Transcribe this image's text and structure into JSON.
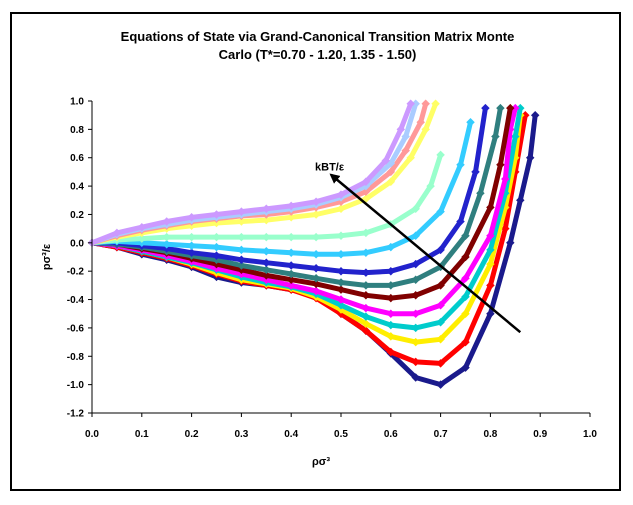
{
  "chart_data": {
    "type": "scatter",
    "title_lines": [
      "Equations of State via Grand-Canonical Transition Matrix Monte",
      "Carlo (T*=0.70 - 1.20, 1.35 - 1.50)"
    ],
    "xlabel": "ρσ³",
    "ylabel": "pσ³/ε",
    "xlim": [
      0.0,
      1.0
    ],
    "ylim": [
      -1.2,
      1.0
    ],
    "xticks": [
      "0.0",
      "0.1",
      "0.2",
      "0.3",
      "0.4",
      "0.5",
      "0.6",
      "0.7",
      "0.8",
      "0.9",
      "1.0"
    ],
    "yticks": [
      "-1.2",
      "-1.0",
      "-0.8",
      "-0.6",
      "-0.4",
      "-0.2",
      "0.0",
      "0.2",
      "0.4",
      "0.6",
      "0.8",
      "1.0"
    ],
    "grid": false,
    "annotation": {
      "text": "kBT/ε",
      "arrow_from": [
        0.86,
        -0.63
      ],
      "arrow_to": [
        0.48,
        0.48
      ]
    },
    "series": [
      {
        "color": "#1a1a8c",
        "points": [
          [
            0,
            0
          ],
          [
            0.05,
            -0.03
          ],
          [
            0.1,
            -0.08
          ],
          [
            0.15,
            -0.12
          ],
          [
            0.2,
            -0.17
          ],
          [
            0.25,
            -0.24
          ],
          [
            0.3,
            -0.28
          ],
          [
            0.35,
            -0.3
          ],
          [
            0.4,
            -0.33
          ],
          [
            0.45,
            -0.38
          ],
          [
            0.5,
            -0.5
          ],
          [
            0.55,
            -0.62
          ],
          [
            0.6,
            -0.78
          ],
          [
            0.65,
            -0.95
          ],
          [
            0.7,
            -1.0
          ],
          [
            0.75,
            -0.88
          ],
          [
            0.8,
            -0.5
          ],
          [
            0.84,
            0.0
          ],
          [
            0.86,
            0.3
          ],
          [
            0.88,
            0.6
          ],
          [
            0.89,
            0.9
          ]
        ]
      },
      {
        "color": "#ff0000",
        "points": [
          [
            0,
            0
          ],
          [
            0.05,
            -0.03
          ],
          [
            0.1,
            -0.07
          ],
          [
            0.15,
            -0.11
          ],
          [
            0.2,
            -0.16
          ],
          [
            0.25,
            -0.22
          ],
          [
            0.3,
            -0.27
          ],
          [
            0.35,
            -0.3
          ],
          [
            0.4,
            -0.33
          ],
          [
            0.45,
            -0.39
          ],
          [
            0.5,
            -0.5
          ],
          [
            0.55,
            -0.62
          ],
          [
            0.6,
            -0.77
          ],
          [
            0.65,
            -0.84
          ],
          [
            0.7,
            -0.85
          ],
          [
            0.75,
            -0.7
          ],
          [
            0.8,
            -0.3
          ],
          [
            0.83,
            0.1
          ],
          [
            0.85,
            0.5
          ],
          [
            0.87,
            0.9
          ]
        ]
      },
      {
        "color": "#ffee00",
        "points": [
          [
            0,
            0
          ],
          [
            0.05,
            -0.02
          ],
          [
            0.1,
            -0.06
          ],
          [
            0.15,
            -0.1
          ],
          [
            0.2,
            -0.15
          ],
          [
            0.25,
            -0.21
          ],
          [
            0.3,
            -0.26
          ],
          [
            0.35,
            -0.29
          ],
          [
            0.4,
            -0.32
          ],
          [
            0.45,
            -0.38
          ],
          [
            0.5,
            -0.47
          ],
          [
            0.55,
            -0.57
          ],
          [
            0.6,
            -0.66
          ],
          [
            0.65,
            -0.7
          ],
          [
            0.7,
            -0.68
          ],
          [
            0.75,
            -0.5
          ],
          [
            0.8,
            -0.15
          ],
          [
            0.83,
            0.25
          ],
          [
            0.85,
            0.6
          ],
          [
            0.86,
            0.9
          ]
        ]
      },
      {
        "color": "#00cccc",
        "points": [
          [
            0,
            0
          ],
          [
            0.05,
            -0.02
          ],
          [
            0.1,
            -0.06
          ],
          [
            0.15,
            -0.1
          ],
          [
            0.2,
            -0.14
          ],
          [
            0.25,
            -0.19
          ],
          [
            0.3,
            -0.24
          ],
          [
            0.35,
            -0.28
          ],
          [
            0.4,
            -0.31
          ],
          [
            0.45,
            -0.36
          ],
          [
            0.5,
            -0.44
          ],
          [
            0.55,
            -0.52
          ],
          [
            0.6,
            -0.58
          ],
          [
            0.65,
            -0.6
          ],
          [
            0.7,
            -0.56
          ],
          [
            0.75,
            -0.38
          ],
          [
            0.8,
            -0.05
          ],
          [
            0.83,
            0.35
          ],
          [
            0.85,
            0.75
          ],
          [
            0.86,
            0.95
          ]
        ]
      },
      {
        "color": "#ff00ff",
        "points": [
          [
            0,
            0
          ],
          [
            0.05,
            -0.02
          ],
          [
            0.1,
            -0.05
          ],
          [
            0.15,
            -0.09
          ],
          [
            0.2,
            -0.13
          ],
          [
            0.25,
            -0.18
          ],
          [
            0.3,
            -0.22
          ],
          [
            0.35,
            -0.26
          ],
          [
            0.4,
            -0.3
          ],
          [
            0.45,
            -0.34
          ],
          [
            0.5,
            -0.4
          ],
          [
            0.55,
            -0.46
          ],
          [
            0.6,
            -0.5
          ],
          [
            0.65,
            -0.5
          ],
          [
            0.7,
            -0.44
          ],
          [
            0.75,
            -0.25
          ],
          [
            0.8,
            0.05
          ],
          [
            0.83,
            0.45
          ],
          [
            0.84,
            0.8
          ],
          [
            0.85,
            0.95
          ]
        ]
      },
      {
        "color": "#800000",
        "points": [
          [
            0,
            0
          ],
          [
            0.05,
            -0.01
          ],
          [
            0.1,
            -0.04
          ],
          [
            0.15,
            -0.07
          ],
          [
            0.2,
            -0.11
          ],
          [
            0.25,
            -0.15
          ],
          [
            0.3,
            -0.19
          ],
          [
            0.35,
            -0.23
          ],
          [
            0.4,
            -0.26
          ],
          [
            0.45,
            -0.29
          ],
          [
            0.5,
            -0.33
          ],
          [
            0.55,
            -0.37
          ],
          [
            0.6,
            -0.39
          ],
          [
            0.65,
            -0.37
          ],
          [
            0.7,
            -0.3
          ],
          [
            0.75,
            -0.1
          ],
          [
            0.8,
            0.25
          ],
          [
            0.82,
            0.55
          ],
          [
            0.84,
            0.95
          ]
        ]
      },
      {
        "color": "#2f7f7f",
        "points": [
          [
            0,
            0
          ],
          [
            0.05,
            -0.01
          ],
          [
            0.1,
            -0.03
          ],
          [
            0.15,
            -0.06
          ],
          [
            0.2,
            -0.09
          ],
          [
            0.25,
            -0.12
          ],
          [
            0.3,
            -0.16
          ],
          [
            0.35,
            -0.19
          ],
          [
            0.4,
            -0.22
          ],
          [
            0.45,
            -0.25
          ],
          [
            0.5,
            -0.28
          ],
          [
            0.55,
            -0.3
          ],
          [
            0.6,
            -0.3
          ],
          [
            0.65,
            -0.26
          ],
          [
            0.7,
            -0.17
          ],
          [
            0.75,
            0.05
          ],
          [
            0.78,
            0.35
          ],
          [
            0.81,
            0.75
          ],
          [
            0.82,
            0.95
          ]
        ]
      },
      {
        "color": "#2222cc",
        "points": [
          [
            0,
            0
          ],
          [
            0.05,
            0.0
          ],
          [
            0.1,
            -0.02
          ],
          [
            0.15,
            -0.04
          ],
          [
            0.2,
            -0.07
          ],
          [
            0.25,
            -0.09
          ],
          [
            0.3,
            -0.12
          ],
          [
            0.35,
            -0.14
          ],
          [
            0.4,
            -0.16
          ],
          [
            0.45,
            -0.18
          ],
          [
            0.5,
            -0.2
          ],
          [
            0.55,
            -0.21
          ],
          [
            0.6,
            -0.2
          ],
          [
            0.65,
            -0.15
          ],
          [
            0.7,
            -0.05
          ],
          [
            0.74,
            0.15
          ],
          [
            0.77,
            0.5
          ],
          [
            0.79,
            0.95
          ]
        ]
      },
      {
        "color": "#33ccff",
        "points": [
          [
            0,
            0
          ],
          [
            0.05,
            0.01
          ],
          [
            0.1,
            0.0
          ],
          [
            0.15,
            -0.01
          ],
          [
            0.2,
            -0.02
          ],
          [
            0.25,
            -0.03
          ],
          [
            0.3,
            -0.05
          ],
          [
            0.35,
            -0.06
          ],
          [
            0.4,
            -0.07
          ],
          [
            0.45,
            -0.08
          ],
          [
            0.5,
            -0.08
          ],
          [
            0.55,
            -0.07
          ],
          [
            0.6,
            -0.03
          ],
          [
            0.65,
            0.05
          ],
          [
            0.7,
            0.22
          ],
          [
            0.74,
            0.55
          ],
          [
            0.76,
            0.85
          ]
        ]
      },
      {
        "color": "#99ffcc",
        "points": [
          [
            0,
            0
          ],
          [
            0.05,
            0.02
          ],
          [
            0.1,
            0.03
          ],
          [
            0.15,
            0.04
          ],
          [
            0.2,
            0.04
          ],
          [
            0.25,
            0.04
          ],
          [
            0.3,
            0.04
          ],
          [
            0.35,
            0.04
          ],
          [
            0.4,
            0.04
          ],
          [
            0.45,
            0.04
          ],
          [
            0.5,
            0.05
          ],
          [
            0.55,
            0.07
          ],
          [
            0.6,
            0.13
          ],
          [
            0.65,
            0.24
          ],
          [
            0.68,
            0.4
          ],
          [
            0.7,
            0.62
          ]
        ]
      },
      {
        "color": "#ffff66",
        "points": [
          [
            0,
            0
          ],
          [
            0.05,
            0.04
          ],
          [
            0.1,
            0.07
          ],
          [
            0.15,
            0.1
          ],
          [
            0.2,
            0.12
          ],
          [
            0.25,
            0.14
          ],
          [
            0.3,
            0.15
          ],
          [
            0.35,
            0.16
          ],
          [
            0.4,
            0.18
          ],
          [
            0.45,
            0.2
          ],
          [
            0.5,
            0.24
          ],
          [
            0.55,
            0.31
          ],
          [
            0.6,
            0.43
          ],
          [
            0.64,
            0.6
          ],
          [
            0.67,
            0.8
          ],
          [
            0.69,
            0.98
          ]
        ]
      },
      {
        "color": "#ff9999",
        "points": [
          [
            0,
            0
          ],
          [
            0.05,
            0.05
          ],
          [
            0.1,
            0.09
          ],
          [
            0.15,
            0.12
          ],
          [
            0.2,
            0.15
          ],
          [
            0.25,
            0.17
          ],
          [
            0.3,
            0.19
          ],
          [
            0.35,
            0.2
          ],
          [
            0.4,
            0.22
          ],
          [
            0.45,
            0.25
          ],
          [
            0.5,
            0.29
          ],
          [
            0.55,
            0.36
          ],
          [
            0.6,
            0.5
          ],
          [
            0.63,
            0.65
          ],
          [
            0.66,
            0.85
          ],
          [
            0.67,
            0.98
          ]
        ]
      },
      {
        "color": "#aaccff",
        "points": [
          [
            0,
            0
          ],
          [
            0.05,
            0.06
          ],
          [
            0.1,
            0.1
          ],
          [
            0.15,
            0.13
          ],
          [
            0.2,
            0.16
          ],
          [
            0.25,
            0.18
          ],
          [
            0.3,
            0.2
          ],
          [
            0.35,
            0.22
          ],
          [
            0.4,
            0.24
          ],
          [
            0.45,
            0.27
          ],
          [
            0.5,
            0.32
          ],
          [
            0.55,
            0.4
          ],
          [
            0.6,
            0.56
          ],
          [
            0.63,
            0.75
          ],
          [
            0.65,
            0.98
          ]
        ]
      },
      {
        "color": "#cc99ff",
        "points": [
          [
            0,
            0
          ],
          [
            0.05,
            0.07
          ],
          [
            0.1,
            0.11
          ],
          [
            0.15,
            0.15
          ],
          [
            0.2,
            0.18
          ],
          [
            0.25,
            0.2
          ],
          [
            0.3,
            0.22
          ],
          [
            0.35,
            0.24
          ],
          [
            0.4,
            0.26
          ],
          [
            0.45,
            0.29
          ],
          [
            0.5,
            0.34
          ],
          [
            0.55,
            0.43
          ],
          [
            0.59,
            0.58
          ],
          [
            0.62,
            0.8
          ],
          [
            0.64,
            0.98
          ]
        ]
      }
    ]
  }
}
